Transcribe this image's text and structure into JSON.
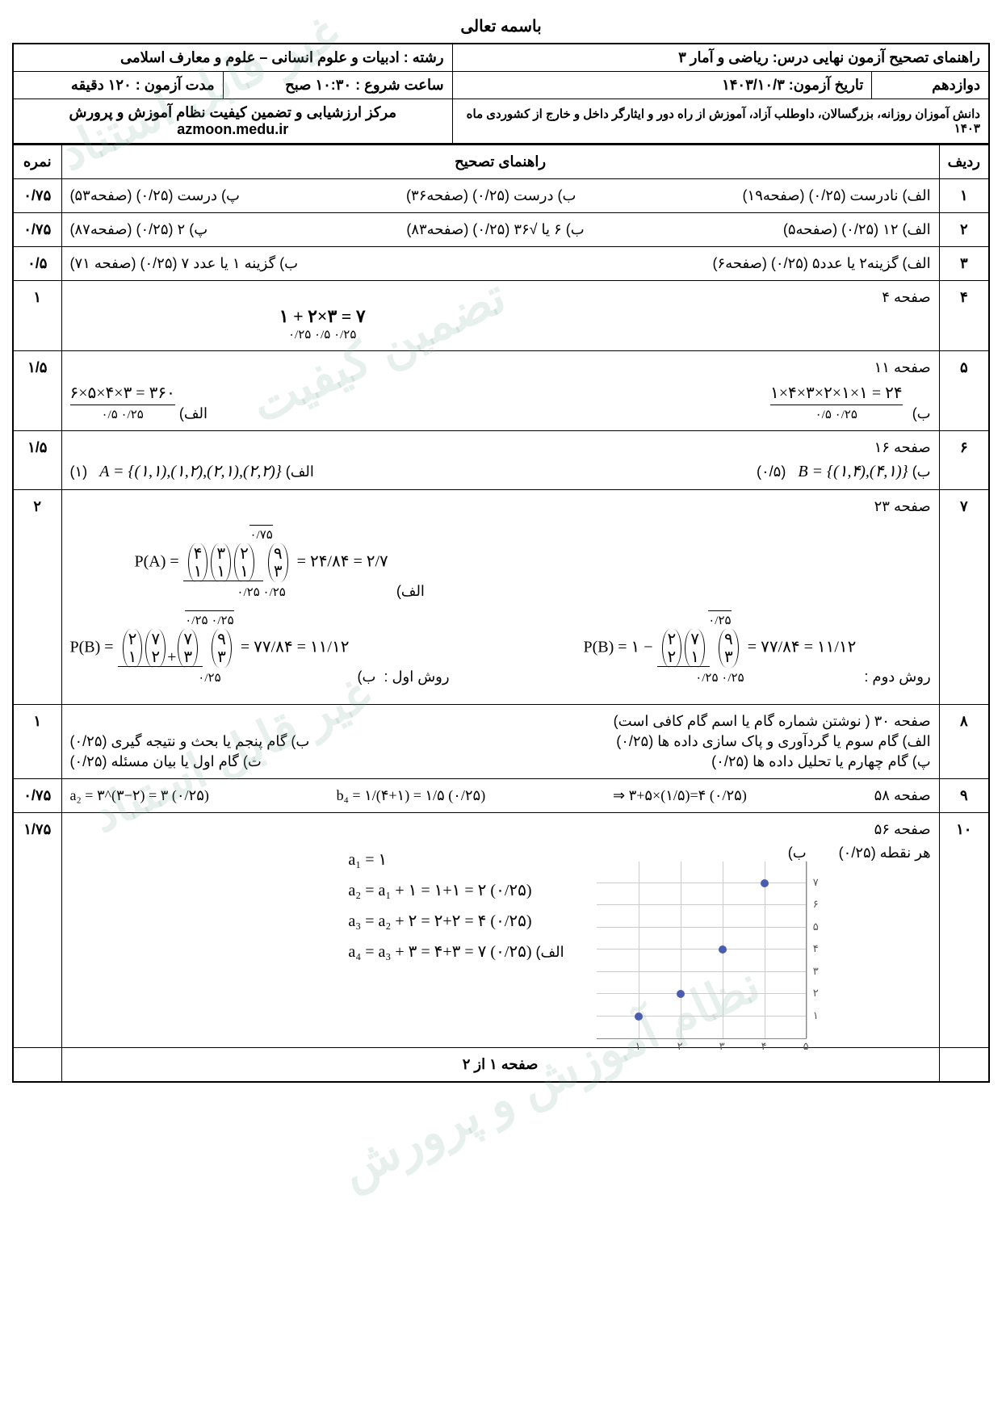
{
  "bismillah": "باسمه تعالی",
  "header": {
    "r1c1": "راهنمای تصحیح آزمون نهایی درس: ریاضی و آمار ۳",
    "r1c2": "رشته : ادبیات و علوم انسانی – علوم و معارف اسلامی",
    "r2c1": "دوازدهم",
    "r2c2": "تاریخ آزمون: ۱۴۰۳/۱۰/۳",
    "r2c3": "ساعت شروع : ۱۰:۳۰ صبح",
    "r2c4": "مدت آزمون : ۱۲۰ دقیقه",
    "r3c1": "دانش آموزان روزانه، بزرگسالان، داوطلب آزاد، آموزش از راه دور و ایثارگر داخل و خارج از کشوردی ماه ۱۴۰۳",
    "r3c2a": "مرکز ارزشیابی و تضمین کیفیت نظام آموزش و پرورش",
    "r3c2b": "azmoon.medu.ir"
  },
  "cols": {
    "row": "ردیف",
    "guide": "راهنمای تصحیح",
    "score": "نمره"
  },
  "rows": {
    "1": {
      "num": "۱",
      "score": "۰/۷۵",
      "a": "الف) نادرست (۰/۲۵)   (صفحه۱۹)",
      "b": "ب) درست (۰/۲۵)   (صفحه۳۶)",
      "c": "پ) درست (۰/۲۵)   (صفحه۵۳)"
    },
    "2": {
      "num": "۲",
      "score": "۰/۷۵",
      "a": "الف) ۱۲ (۰/۲۵)   (صفحه۵)",
      "b": "ب) ۶ یا  √۳۶  (۰/۲۵)   (صفحه۸۳)",
      "c": "پ) ۲ (۰/۲۵)   (صفحه۸۷)"
    },
    "3": {
      "num": "۳",
      "score": "۰/۵",
      "a": "الف) گزینه۲ یا عدد۵   (۰/۲۵)   (صفحه۶)",
      "b": "ب) گزینه ۱  یا عدد ۷   (۰/۲۵)   (صفحه ۷۱)"
    },
    "4": {
      "num": "۴",
      "score": "۱",
      "page": "صفحه ۴",
      "eq": "۱ + ۲×۳ = ۷",
      "pts": "۰/۲۵   ۰/۵   ۰/۲۵"
    },
    "5": {
      "num": "۵",
      "score": "۱/۵",
      "page": "صفحه ۱۱",
      "left_label": "الف)",
      "left_eq": "۶×۵×۴×۳ = ۳۶۰",
      "left_pts": "۰/۵        ۰/۲۵",
      "right_label": "ب)",
      "right_eq": "۱×۴×۳×۲×۱×۱ = ۲۴",
      "right_pts": "۰/۵        ۰/۲۵"
    },
    "6": {
      "num": "۶",
      "score": "۱/۵",
      "page": "صفحه ۱۶",
      "a_lbl": "الف)",
      "a_set": "A = {(۱,۱),(۱,۲),(۲,۱),(۲,۲)}",
      "a_pt": "(۱)",
      "b_lbl": "ب)",
      "b_set": "B = {(۱,۴),(۴,۱)}",
      "b_pt": "(۰/۵)"
    },
    "7": {
      "num": "۷",
      "score": "۲",
      "page": "صفحه ۲۳",
      "pa_lbl": "الف)",
      "pa_pre": "P(A) =",
      "pa_num_top": "(۴ ۱)(۳ ۱)(۲ ۱)",
      "pa_num_bot": "(۹ ۳)",
      "pa_mid": "= ۲۴/۸۴ = ۲/۷",
      "pa_pt_top": "۰/۷۵",
      "pa_pt_bot": "۰/۲۵   ۰/۲۵",
      "m1_lbl": "روش اول :",
      "pb1_pre": "P(B) =",
      "pb1_num": "(۲ ۱)(۷ ۲)+(۷ ۳)",
      "pb1_den": "(۹ ۳)",
      "pb1_res": "= ۷۷/۸۴ = ۱۱/۱۲",
      "pb1_pts1": "۰/۲۵   ۰/۲۵",
      "pb1_pts2": "۰/۲۵",
      "m2_lbl": "روش دوم :",
      "pb2_pre": "P(B) = ۱ −",
      "pb2_num": "(۲ ۲)(۷ ۱)",
      "pb2_den": "(۹ ۳)",
      "pb2_res": "= ۷۷/۸۴ = ۱۱/۱۲",
      "pb2_pts1": "۰/۲۵",
      "pb2_pts2": "۰/۲۵   ۰/۲۵",
      "b_lbl": "ب)"
    },
    "8": {
      "num": "۸",
      "score": "۱",
      "page": "صفحه ۳۰   ( نوشتن شماره گام یا اسم گام کافی است)",
      "a": "الف) گام سوم یا گردآوری و پاک سازی داده ها  (۰/۲۵)",
      "b": "ب) گام پنجم یا بحث و نتیجه گیری  (۰/۲۵)",
      "c": "پ) گام چهارم یا تحلیل داده ها (۰/۲۵)",
      "d": "ت) گام اول یا بیان مسئله (۰/۲۵)"
    },
    "9": {
      "num": "۹",
      "score": "۰/۷۵",
      "page": "صفحه ۵۸",
      "eq1": "⇒  ۳+۵×(۱/۵)=۴    (۰/۲۵)",
      "eq2": "b₄ = ۱/(۴+۱) = ۱/۵    (۰/۲۵)",
      "eq3": "a₂ = ۳^(۳−۲) = ۳    (۰/۲۵)"
    },
    "10": {
      "num": "۱۰",
      "score": "۱/۷۵",
      "page": "صفحه ۵۶",
      "a_lbl": "الف)",
      "lines": [
        "a₁ = ۱",
        "a₂ = a₁ + ۱ = ۱+۱ = ۲    (۰/۲۵)",
        "a₃ = a₂ + ۲ = ۲+۲ = ۴    (۰/۲۵)",
        "a₄ = a₃ + ۳ = ۴+۳ = ۷    (۰/۲۵)"
      ],
      "b_lbl": "ب)",
      "pt_note": "هر نقطه (۰/۲۵)",
      "scatter": {
        "type": "scatter",
        "xlim": [
          0,
          5
        ],
        "ylim": [
          0,
          8
        ],
        "xticks": [
          1,
          2,
          3,
          4,
          5
        ],
        "yticks": [
          1,
          2,
          3,
          4,
          5,
          6,
          7
        ],
        "points": [
          [
            1,
            1
          ],
          [
            2,
            2
          ],
          [
            3,
            4
          ],
          [
            4,
            7
          ]
        ],
        "point_color": "#4a5db0",
        "grid_color": "#cccccc",
        "axis_color": "#888888"
      }
    }
  },
  "footer": "صفحه ۱ از ۲",
  "watermarks": [
    "غیر قابل استناد",
    "تضمین کیفیت",
    "نظام آموزش و پرورش"
  ]
}
